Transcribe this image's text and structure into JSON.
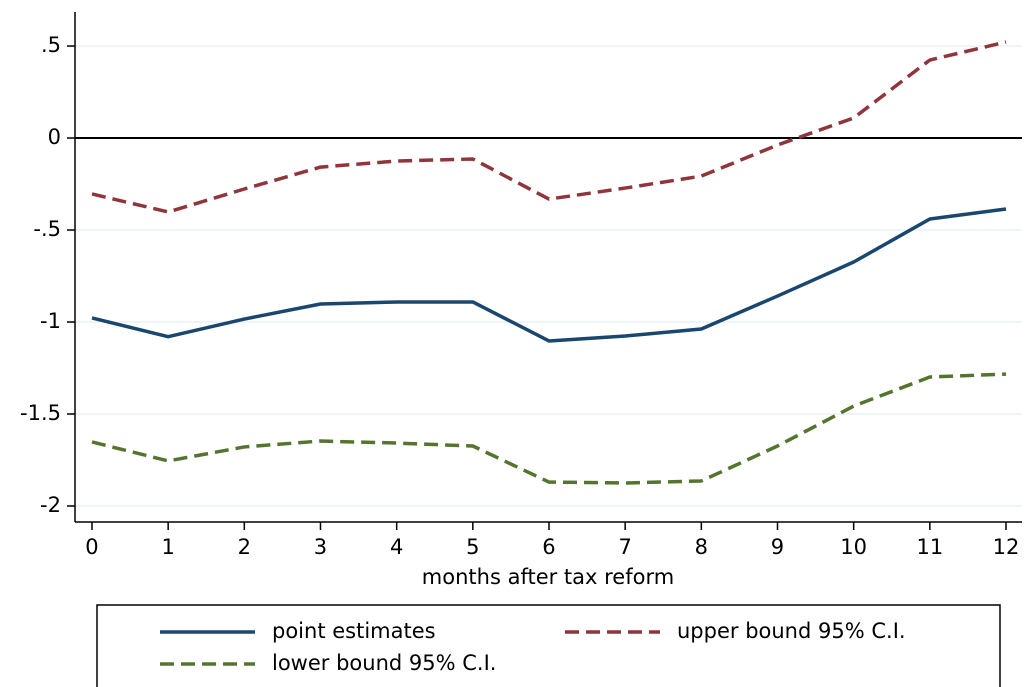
{
  "chart_data": {
    "type": "line",
    "x_label": "months after tax reform",
    "x": [
      0,
      1,
      2,
      3,
      4,
      5,
      6,
      7,
      8,
      9,
      10,
      11,
      12
    ],
    "series": [
      {
        "name": "point estimates",
        "color": "#1a476f",
        "dashed": false,
        "values": [
          -0.978,
          -1.08,
          -0.984,
          -0.902,
          -0.891,
          -0.891,
          -1.103,
          -1.076,
          -1.038,
          -0.859,
          -0.674,
          -0.44,
          -0.386
        ]
      },
      {
        "name": "upper bound 95% C.I.",
        "color": "#90353b",
        "dashed": true,
        "values": [
          -0.304,
          -0.402,
          -0.277,
          -0.158,
          -0.125,
          -0.114,
          -0.332,
          -0.272,
          -0.207,
          -0.038,
          0.109,
          0.424,
          0.522
        ]
      },
      {
        "name": "lower bound 95% C.I.",
        "color": "#55752f",
        "dashed": true,
        "values": [
          -1.652,
          -1.755,
          -1.679,
          -1.647,
          -1.658,
          -1.674,
          -1.87,
          -1.875,
          -1.864,
          -1.674,
          -1.457,
          -1.299,
          -1.283
        ]
      }
    ],
    "xlim": [
      -0.223,
      12.21
    ],
    "xticks": [
      0,
      1,
      2,
      3,
      4,
      5,
      6,
      7,
      8,
      9,
      10,
      11,
      12
    ],
    "ylim": [
      -2.087,
      0.685
    ],
    "yticks": [
      {
        "value": 0.5,
        "label": ".5"
      },
      0,
      {
        "value": -0.5,
        "label": "-.5"
      },
      -1,
      -1.5,
      -2
    ],
    "reference_line": 0,
    "grid": true,
    "grid_color": "#eaf2f3",
    "legend_position": "bottom"
  }
}
